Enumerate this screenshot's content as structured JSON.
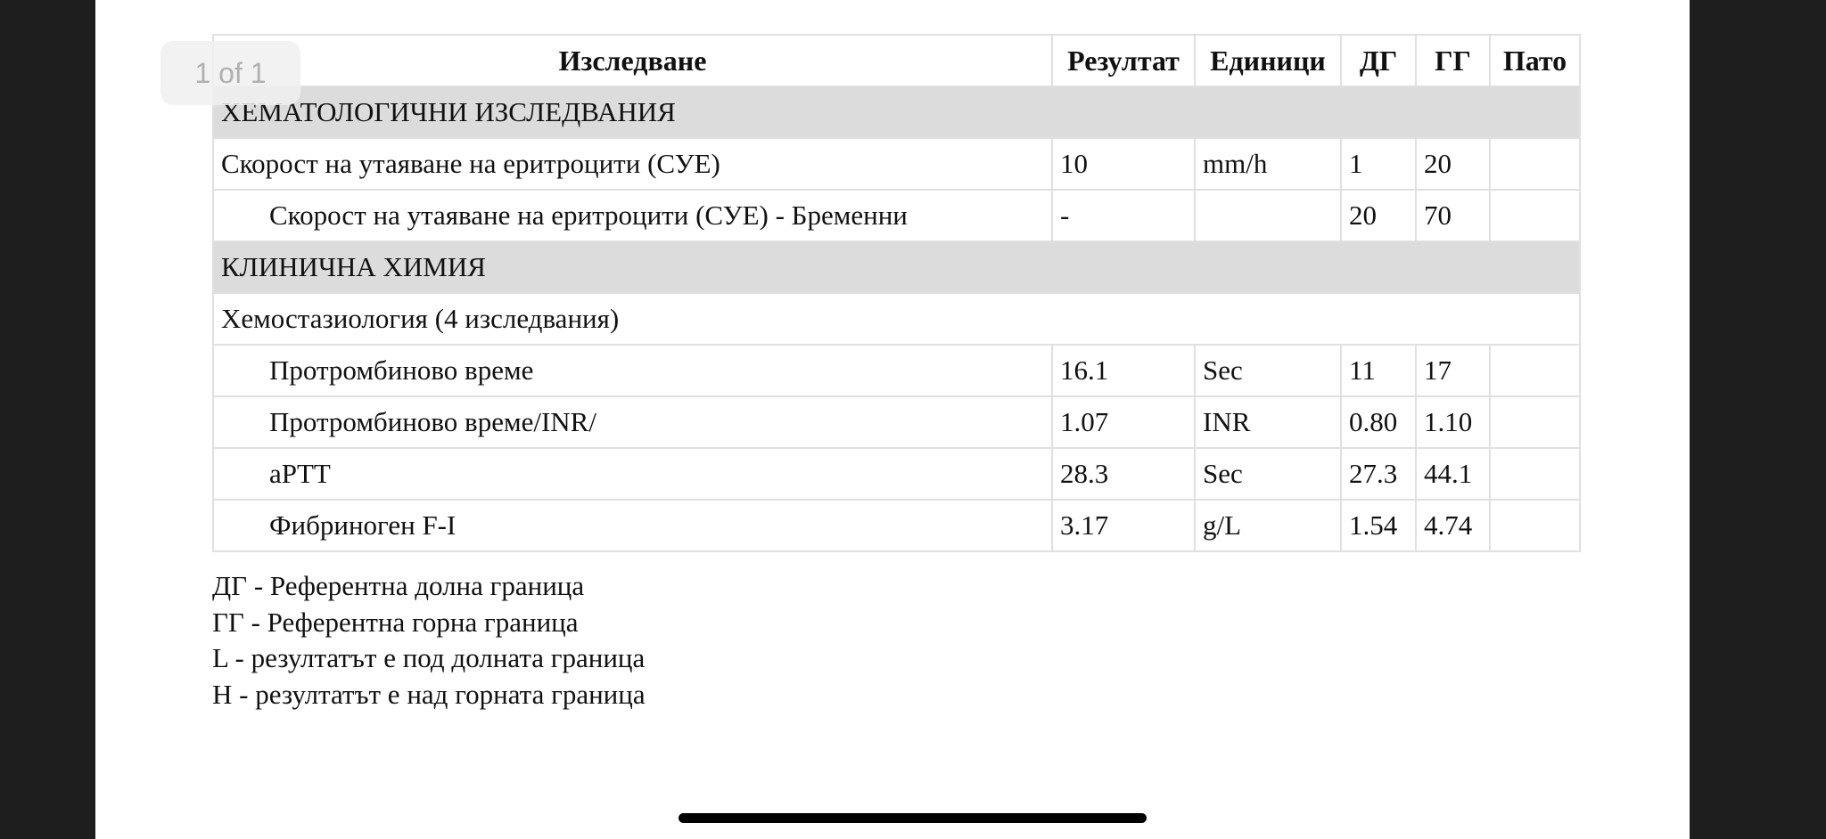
{
  "viewer": {
    "page_indicator": "1 of 1"
  },
  "table": {
    "headers": [
      "Изследване",
      "Резултат",
      "Единици",
      "ДГ",
      "ГГ",
      "Пато"
    ],
    "rows": [
      {
        "type": "section",
        "name": "ХЕМАТОЛОГИЧНИ ИЗСЛЕДВАНИЯ"
      },
      {
        "type": "test",
        "indent": false,
        "name": "Скорост на утаяване на еритроцити (СУЕ)",
        "result": "10",
        "units": "mm/h",
        "low": "1",
        "high": "20",
        "path": ""
      },
      {
        "type": "test",
        "indent": true,
        "name": "Скорост на утаяване на еритроцити (СУЕ) - Бременни",
        "result": "-",
        "units": "",
        "low": "20",
        "high": "70",
        "path": ""
      },
      {
        "type": "section",
        "name": "КЛИНИЧНА ХИМИЯ"
      },
      {
        "type": "group",
        "name": "Хемостазиология (4 изследвания)"
      },
      {
        "type": "test",
        "indent": true,
        "name": "Протромбиново време",
        "result": "16.1",
        "units": "Sec",
        "low": "11",
        "high": "17",
        "path": ""
      },
      {
        "type": "test",
        "indent": true,
        "name": "Протромбиново време/INR/",
        "result": "1.07",
        "units": "INR",
        "low": "0.80",
        "high": "1.10",
        "path": ""
      },
      {
        "type": "test",
        "indent": true,
        "name": "aPTT",
        "result": "28.3",
        "units": "Sec",
        "low": "27.3",
        "high": "44.1",
        "path": ""
      },
      {
        "type": "test",
        "indent": true,
        "name": "Фибриноген F-I",
        "result": "3.17",
        "units": "g/L",
        "low": "1.54",
        "high": "4.74",
        "path": ""
      }
    ]
  },
  "legend": [
    "ДГ - Референтна долна граница",
    "ГГ - Референтна горна граница",
    "L - резултатът е под долната граница",
    "H - резултатът е над горната граница"
  ]
}
